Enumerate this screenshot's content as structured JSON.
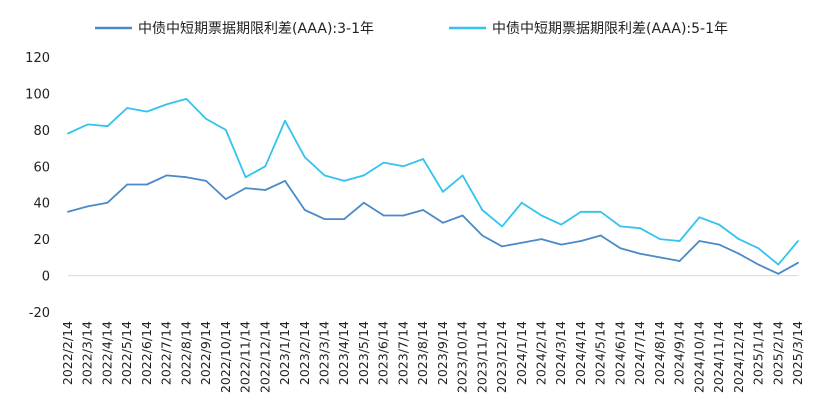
{
  "chart_data": {
    "type": "line",
    "title": "",
    "xlabel": "",
    "ylabel": "",
    "ylim": [
      -20,
      120
    ],
    "yticks": [
      -20,
      0,
      20,
      40,
      60,
      80,
      100,
      120
    ],
    "grid": false,
    "legend_position": "top",
    "x": [
      "2022/2/14",
      "2022/3/14",
      "2022/4/14",
      "2022/5/14",
      "2022/6/14",
      "2022/7/14",
      "2022/8/14",
      "2022/9/14",
      "2022/10/14",
      "2022/11/14",
      "2022/12/14",
      "2023/1/14",
      "2023/2/14",
      "2023/3/14",
      "2023/4/14",
      "2023/5/14",
      "2023/6/14",
      "2023/7/14",
      "2023/8/14",
      "2023/9/14",
      "2023/10/14",
      "2023/11/14",
      "2023/12/14",
      "2024/1/14",
      "2024/2/14",
      "2024/3/14",
      "2024/4/14",
      "2024/5/14",
      "2024/6/14",
      "2024/7/14",
      "2024/8/14",
      "2024/9/14",
      "2024/10/14",
      "2024/11/14",
      "2024/12/14",
      "2025/1/14",
      "2025/2/14",
      "2025/3/14"
    ],
    "series": [
      {
        "name": "中债中短期票据期限利差(AAA):3-1年",
        "color": "#4a8ac8",
        "values": [
          35,
          38,
          40,
          50,
          50,
          55,
          54,
          52,
          42,
          48,
          47,
          52,
          36,
          31,
          31,
          40,
          33,
          33,
          36,
          29,
          33,
          22,
          16,
          18,
          20,
          17,
          19,
          22,
          15,
          12,
          10,
          8,
          19,
          17,
          12,
          6,
          1,
          7
        ]
      },
      {
        "name": "中债中短期票据期限利差(AAA):5-1年",
        "color": "#33c3ee",
        "values": [
          78,
          83,
          82,
          92,
          90,
          94,
          97,
          86,
          80,
          54,
          60,
          85,
          65,
          55,
          52,
          55,
          62,
          60,
          64,
          46,
          55,
          36,
          27,
          40,
          33,
          28,
          35,
          35,
          27,
          26,
          20,
          19,
          32,
          28,
          20,
          15,
          6,
          19
        ]
      }
    ]
  }
}
